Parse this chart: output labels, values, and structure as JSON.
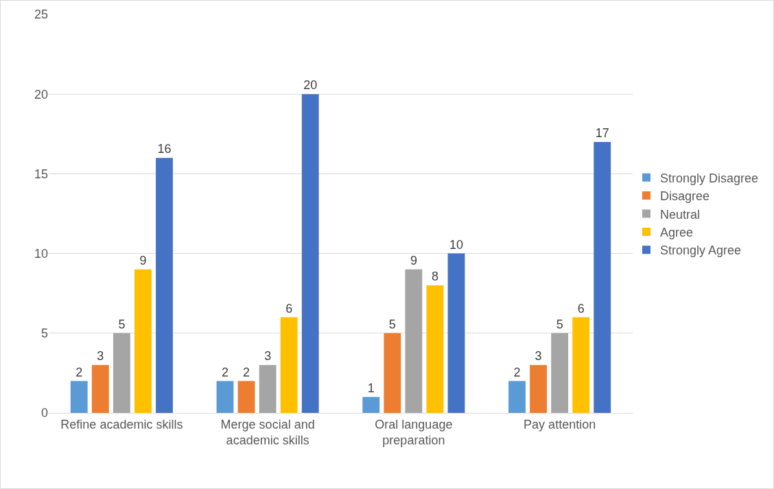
{
  "chart_data": {
    "type": "bar",
    "categories": [
      "Refine academic skills",
      "Merge social and academic skills",
      "Oral language preparation",
      "Pay attention"
    ],
    "series": [
      {
        "name": "Strongly Disagree",
        "color": "#5b9bd5",
        "values": [
          2,
          2,
          1,
          2
        ]
      },
      {
        "name": "Disagree",
        "color": "#ed7d31",
        "values": [
          3,
          2,
          5,
          3
        ]
      },
      {
        "name": "Neutral",
        "color": "#a5a5a5",
        "values": [
          5,
          3,
          9,
          5
        ]
      },
      {
        "name": "Agree",
        "color": "#ffc000",
        "values": [
          9,
          6,
          8,
          6
        ]
      },
      {
        "name": "Strongly Agree",
        "color": "#4472c4",
        "values": [
          16,
          20,
          10,
          17
        ]
      }
    ],
    "ylim": [
      0,
      25
    ],
    "yticks": [
      0,
      5,
      10,
      15,
      20,
      25
    ],
    "grid": "y",
    "legend": "right",
    "data_labels": true
  }
}
